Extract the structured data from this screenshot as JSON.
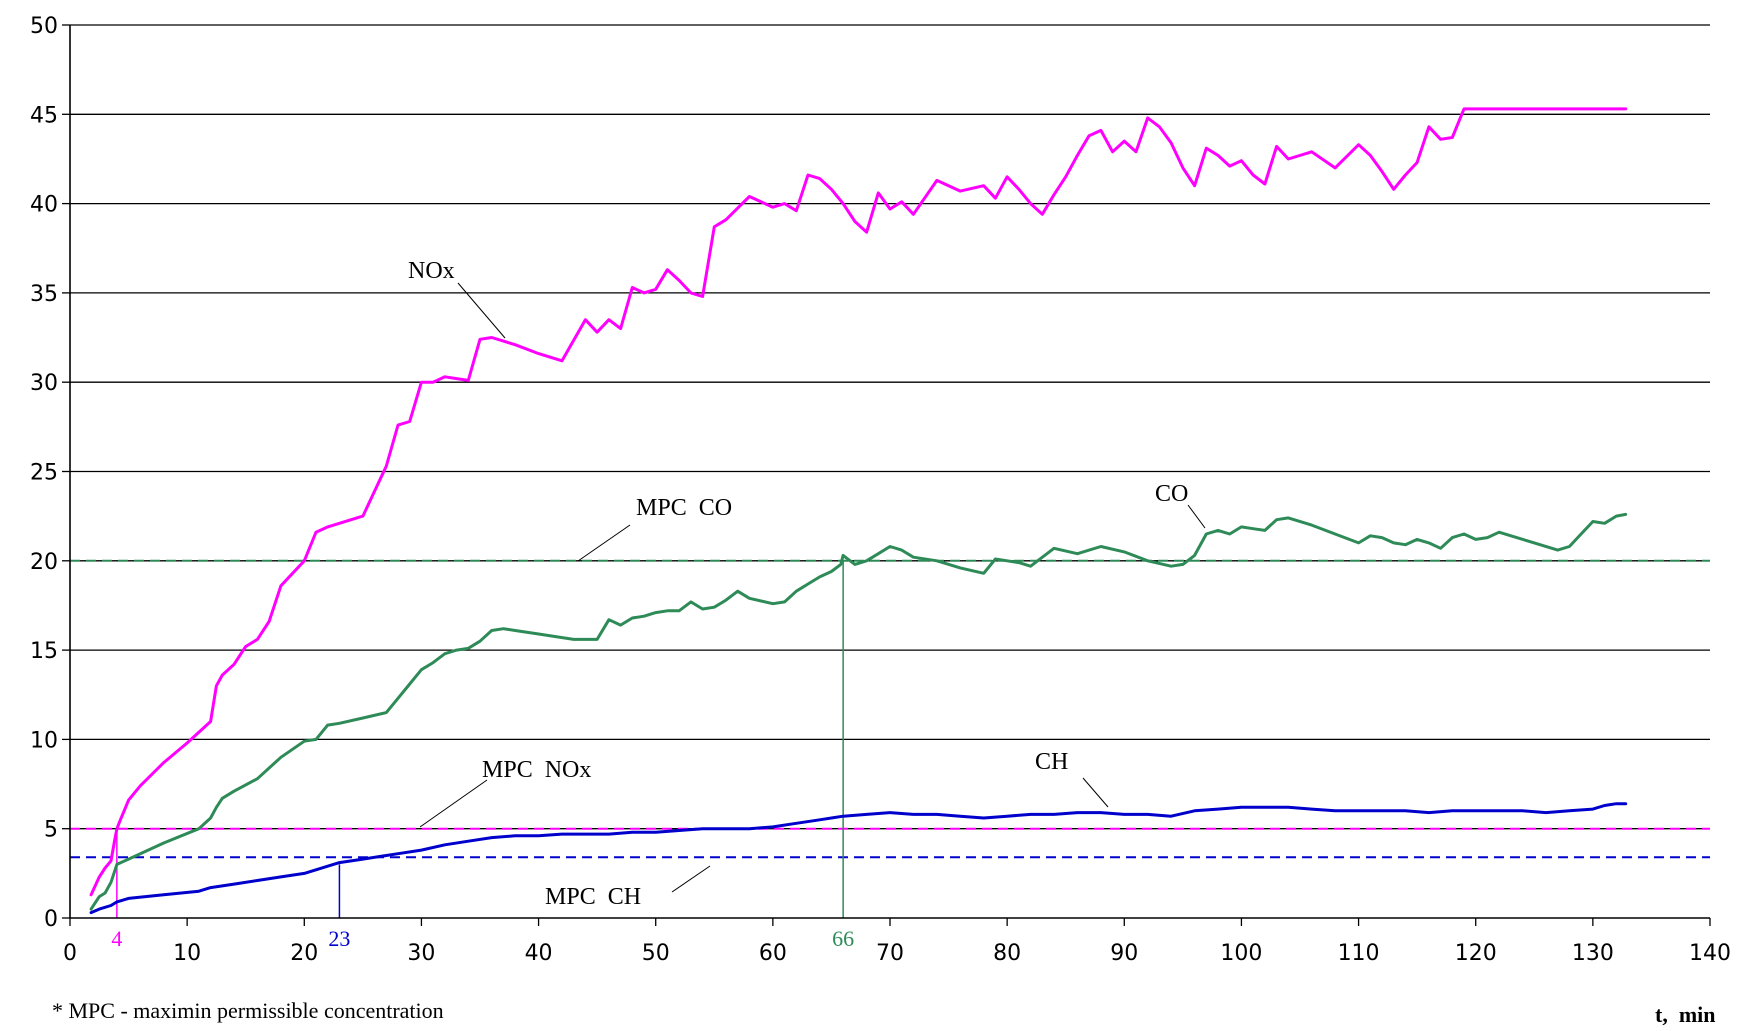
{
  "chart_data": {
    "type": "line",
    "xlim": [
      0,
      140
    ],
    "ylim": [
      0,
      50
    ],
    "xticks": [
      0,
      10,
      20,
      30,
      40,
      50,
      60,
      70,
      80,
      90,
      100,
      110,
      120,
      130,
      140
    ],
    "yticks": [
      0,
      5,
      10,
      15,
      20,
      25,
      30,
      35,
      40,
      45,
      50
    ],
    "xlabel": "t,  min",
    "ylabel": "",
    "grid": "horizontal",
    "footnote": "* MPC - maximin permissible concentration",
    "series": [
      {
        "name": "NOx",
        "color": "#ff00ff",
        "x": [
          1.8,
          2.5,
          3.0,
          3.5,
          3.8,
          4.0,
          4.3,
          5,
          6,
          8,
          10,
          12,
          12.5,
          13,
          14,
          15,
          16,
          17,
          18,
          19,
          20,
          21,
          22,
          23,
          25,
          27,
          28,
          29,
          30,
          31,
          32,
          33,
          34,
          35,
          36,
          37,
          38,
          40,
          42,
          44,
          45,
          46,
          47,
          48,
          49,
          50,
          51,
          52,
          53,
          54,
          55,
          56,
          58,
          60,
          61,
          62,
          63,
          64,
          65,
          66,
          67,
          68,
          69,
          70,
          71,
          72,
          74,
          76,
          78,
          79,
          80,
          81,
          82,
          83,
          84,
          85,
          86,
          87,
          88,
          89,
          90,
          91,
          92,
          93,
          94,
          95,
          96,
          97,
          98,
          99,
          100,
          101,
          102,
          103,
          104,
          106,
          108,
          110,
          111,
          112,
          113,
          114,
          115,
          116,
          117,
          118,
          119,
          120,
          121,
          122,
          123,
          125,
          127,
          128,
          129,
          130,
          131,
          132,
          132.8
        ],
        "y": [
          1.3,
          2.3,
          2.8,
          3.2,
          4.3,
          5.0,
          5.5,
          6.6,
          7.4,
          8.7,
          9.8,
          11.0,
          13.0,
          13.6,
          14.2,
          15.2,
          15.6,
          16.6,
          18.6,
          19.3,
          20.0,
          21.6,
          21.9,
          22.1,
          22.5,
          25.3,
          27.6,
          27.8,
          30.0,
          30.0,
          30.3,
          30.2,
          30.1,
          32.4,
          32.5,
          32.3,
          32.1,
          31.6,
          31.2,
          33.5,
          32.8,
          33.5,
          33.0,
          35.3,
          35.0,
          35.2,
          36.3,
          35.7,
          35.0,
          34.8,
          38.7,
          39.1,
          40.4,
          39.8,
          40.0,
          39.6,
          41.6,
          41.4,
          40.8,
          40.0,
          39.0,
          38.4,
          40.6,
          39.7,
          40.1,
          39.4,
          41.3,
          40.7,
          41.0,
          40.3,
          41.5,
          40.8,
          40.0,
          39.4,
          40.5,
          41.5,
          42.7,
          43.8,
          44.1,
          42.9,
          43.5,
          42.9,
          44.8,
          44.3,
          43.4,
          42.0,
          41.0,
          43.1,
          42.7,
          42.1,
          42.4,
          41.6,
          41.1,
          43.2,
          42.5,
          42.9,
          42.0,
          43.3,
          42.7,
          41.8,
          40.8,
          41.6,
          42.3,
          44.3,
          43.6,
          43.7,
          45.3,
          45.3,
          45.3,
          45.3,
          45.3,
          45.3,
          45.3,
          45.3,
          45.3,
          45.3,
          45.3,
          45.3,
          45.3
        ]
      },
      {
        "name": "CO",
        "color": "#2e8b57",
        "x": [
          1.8,
          2.5,
          3.0,
          3.5,
          4.0,
          5,
          8,
          11,
          12,
          12.5,
          13,
          14,
          16,
          18,
          20,
          21,
          22,
          23,
          25,
          27,
          28,
          29,
          30,
          31,
          32,
          33,
          34,
          35,
          36,
          37,
          38,
          40,
          43,
          45,
          46,
          47,
          48,
          49,
          50,
          51,
          52,
          53,
          54,
          55,
          56,
          57,
          58,
          60,
          61,
          62,
          63,
          64,
          65,
          65.8,
          66,
          67,
          68,
          69,
          70,
          71,
          72,
          74,
          76,
          78,
          79,
          80,
          81,
          82,
          84,
          86,
          88,
          90,
          92,
          94,
          95,
          96,
          97,
          98,
          99,
          100,
          101,
          102,
          103,
          104,
          106,
          108,
          110,
          111,
          112,
          113,
          114,
          115,
          116,
          117,
          118,
          119,
          120,
          121,
          122,
          123,
          125,
          127,
          128,
          129,
          130,
          131,
          132,
          132.8
        ],
        "y": [
          0.5,
          1.2,
          1.4,
          2.0,
          3.0,
          3.3,
          4.2,
          5.0,
          5.6,
          6.2,
          6.7,
          7.1,
          7.8,
          9.0,
          9.9,
          10.0,
          10.8,
          10.9,
          11.2,
          11.5,
          12.3,
          13.1,
          13.9,
          14.3,
          14.8,
          15.0,
          15.1,
          15.5,
          16.1,
          16.2,
          16.1,
          15.9,
          15.6,
          15.6,
          16.7,
          16.4,
          16.8,
          16.9,
          17.1,
          17.2,
          17.2,
          17.7,
          17.3,
          17.4,
          17.8,
          18.3,
          17.9,
          17.6,
          17.7,
          18.3,
          18.7,
          19.1,
          19.4,
          19.8,
          20.3,
          19.8,
          20.0,
          20.4,
          20.8,
          20.6,
          20.2,
          20.0,
          19.6,
          19.3,
          20.1,
          20.0,
          19.9,
          19.7,
          20.7,
          20.4,
          20.8,
          20.5,
          20.0,
          19.7,
          19.8,
          20.3,
          21.5,
          21.7,
          21.5,
          21.9,
          21.8,
          21.7,
          22.3,
          22.4,
          22.0,
          21.5,
          21.0,
          21.4,
          21.3,
          21.0,
          20.9,
          21.2,
          21.0,
          20.7,
          21.3,
          21.5,
          21.2,
          21.3,
          21.6,
          21.4,
          21.0,
          20.6,
          20.8,
          21.5,
          22.2,
          22.1,
          22.5,
          22.6
        ]
      },
      {
        "name": "CH",
        "color": "#0000cc",
        "x": [
          1.8,
          2.5,
          3.5,
          4.0,
          5,
          8,
          11,
          12,
          14,
          16,
          18,
          20,
          21,
          22,
          23,
          25,
          27,
          28,
          30,
          32,
          34,
          36,
          38,
          40,
          42,
          44,
          46,
          48,
          50,
          52,
          54,
          56,
          58,
          60,
          62,
          64,
          65,
          66,
          68,
          70,
          72,
          74,
          76,
          78,
          80,
          82,
          84,
          86,
          88,
          90,
          92,
          94,
          96,
          98,
          100,
          102,
          104,
          106,
          108,
          110,
          112,
          114,
          116,
          118,
          120,
          122,
          124,
          126,
          128,
          130,
          131,
          132,
          132.8
        ],
        "y": [
          0.3,
          0.5,
          0.7,
          0.9,
          1.1,
          1.3,
          1.5,
          1.7,
          1.9,
          2.1,
          2.3,
          2.5,
          2.7,
          2.9,
          3.1,
          3.3,
          3.5,
          3.6,
          3.8,
          4.1,
          4.3,
          4.5,
          4.6,
          4.6,
          4.7,
          4.7,
          4.7,
          4.8,
          4.8,
          4.9,
          5.0,
          5.0,
          5.0,
          5.1,
          5.3,
          5.5,
          5.6,
          5.7,
          5.8,
          5.9,
          5.8,
          5.8,
          5.7,
          5.6,
          5.7,
          5.8,
          5.8,
          5.9,
          5.9,
          5.8,
          5.8,
          5.7,
          6.0,
          6.1,
          6.2,
          6.2,
          6.2,
          6.1,
          6.0,
          6.0,
          6.0,
          6.0,
          5.9,
          6.0,
          6.0,
          6.0,
          6.0,
          5.9,
          6.0,
          6.1,
          6.3,
          6.4,
          6.4
        ]
      }
    ],
    "reference_lines": [
      {
        "name": "MPC CO",
        "y": 20,
        "color": "#2e8b57",
        "dash": true
      },
      {
        "name": "MPC NOx",
        "y": 5,
        "color": "#ff00ff",
        "dash": true
      },
      {
        "name": "MPC CH",
        "y": 3.4,
        "color": "#0000cc",
        "dash": true
      }
    ],
    "markers": [
      {
        "x": 4,
        "label": "4",
        "color": "#ff00ff",
        "y_top": 5.0
      },
      {
        "x": 23,
        "label": "23",
        "color": "#0000cc",
        "y_top": 3.0
      },
      {
        "x": 66,
        "label": "66",
        "color": "#2e8b57",
        "y_top": 20.0
      }
    ],
    "annotations": [
      {
        "text": "NOx",
        "series": "NOx"
      },
      {
        "text": "CO",
        "series": "CO"
      },
      {
        "text": "CH",
        "series": "CH"
      },
      {
        "text": "MPC  CO",
        "series": "MPC CO"
      },
      {
        "text": "MPC  NOx",
        "series": "MPC NOx"
      },
      {
        "text": "MPC  CH",
        "series": "MPC CH"
      }
    ]
  }
}
